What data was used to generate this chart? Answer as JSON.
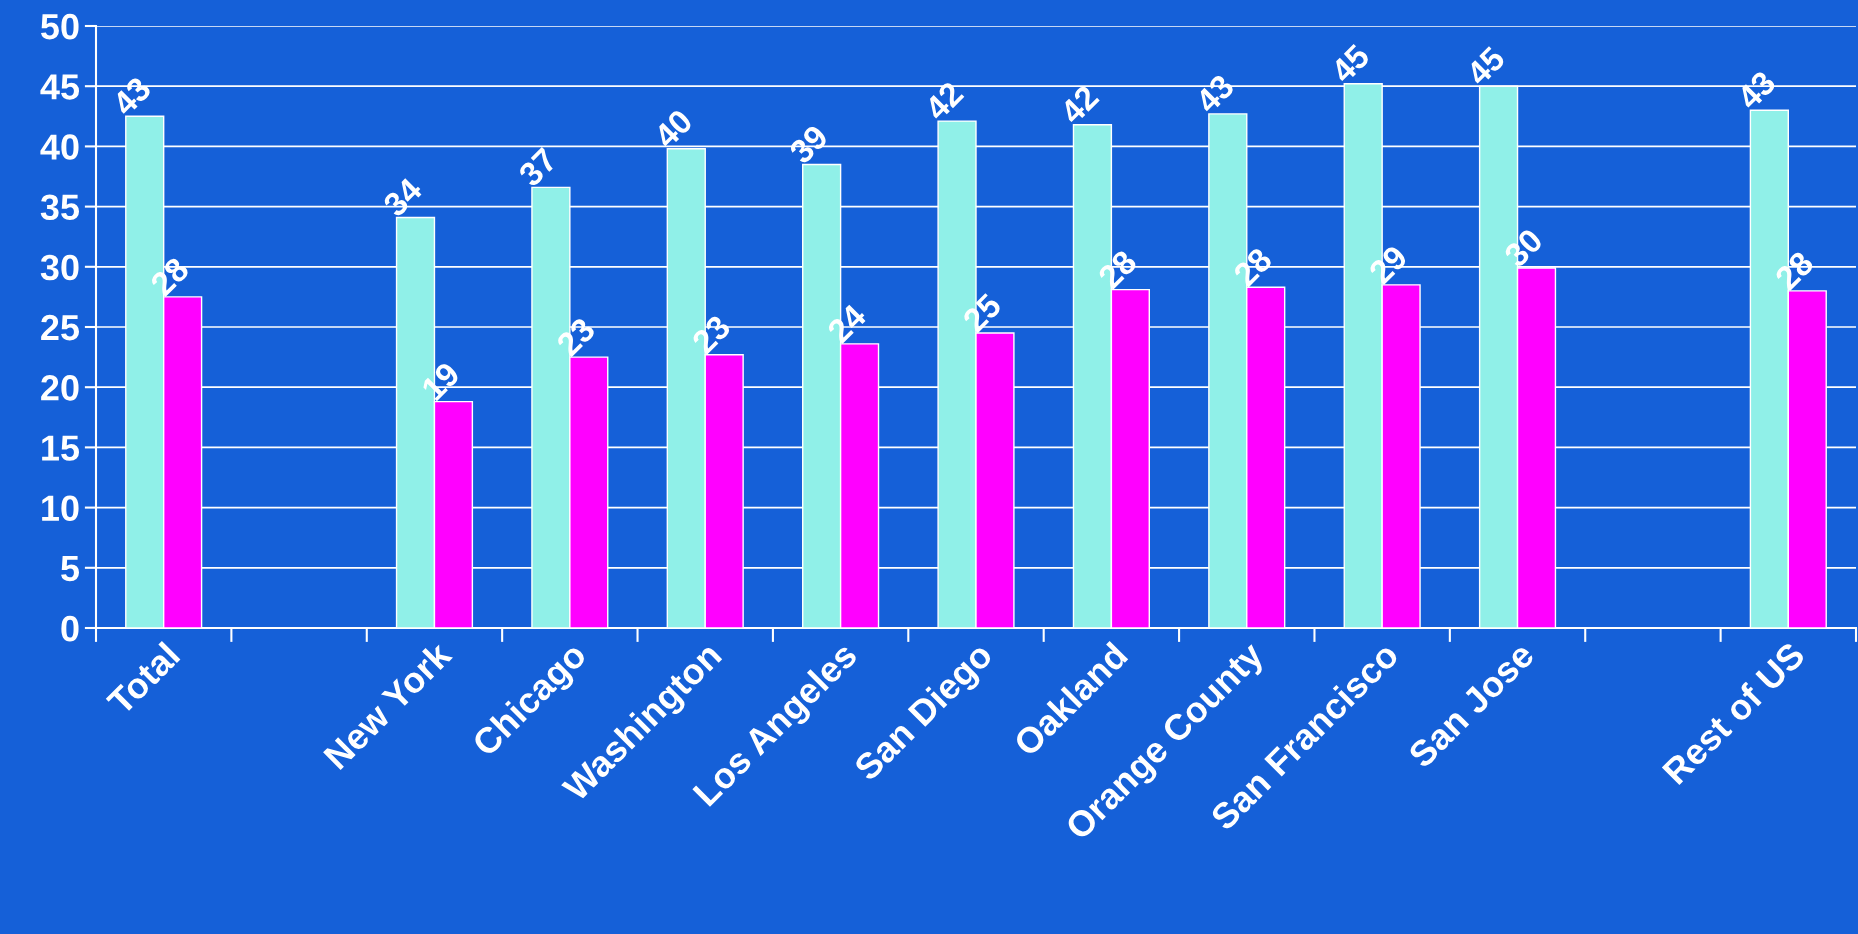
{
  "chart_data": {
    "type": "bar",
    "categories": [
      "Total",
      null,
      "New York",
      "Chicago",
      "Washington",
      "Los Angeles",
      "San Diego",
      "Oakland",
      "Orange County",
      "San Francisco",
      "San Jose",
      null,
      "Rest of US"
    ],
    "series": [
      {
        "color": "#90f0e8",
        "values": [
          42.5,
          null,
          34.1,
          36.6,
          39.8,
          38.5,
          42.1,
          41.8,
          42.7,
          45.2,
          45.0,
          null,
          43.0
        ],
        "value_labels": [
          "43",
          null,
          "34",
          "37",
          "40",
          "39",
          "42",
          "42",
          "43",
          "45",
          "45",
          null,
          "43"
        ]
      },
      {
        "color": "#ff00ff",
        "values": [
          27.5,
          null,
          18.8,
          22.5,
          22.7,
          23.6,
          24.5,
          28.1,
          28.3,
          28.5,
          29.9,
          null,
          28.0
        ],
        "value_labels": [
          "28",
          null,
          "19",
          "23",
          "23",
          "24",
          "25",
          "28",
          "28",
          "29",
          "30",
          null,
          "28"
        ]
      }
    ],
    "ylim": [
      0,
      50
    ],
    "yticks": [
      0,
      5,
      10,
      15,
      20,
      25,
      30,
      35,
      40,
      45,
      50
    ],
    "grid": "y",
    "legend": false
  }
}
